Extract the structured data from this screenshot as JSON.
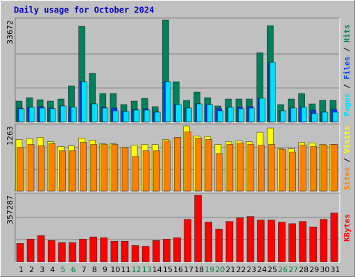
{
  "chart_data": {
    "type": "bar",
    "title": "Daily usage for October 2024",
    "categories": [
      "1",
      "2",
      "3",
      "4",
      "5",
      "6",
      "7",
      "8",
      "9",
      "10",
      "11",
      "12",
      "13",
      "14",
      "15",
      "16",
      "17",
      "18",
      "19",
      "20",
      "21",
      "22",
      "23",
      "24",
      "25",
      "26",
      "27",
      "28",
      "29",
      "30",
      "31"
    ],
    "category_colors": [
      "#000000",
      "#000000",
      "#000000",
      "#000000",
      "#008040",
      "#008040",
      "#000000",
      "#000000",
      "#000000",
      "#000000",
      "#000000",
      "#008040",
      "#008040",
      "#000000",
      "#000000",
      "#000000",
      "#000000",
      "#000000",
      "#008040",
      "#008040",
      "#000000",
      "#000000",
      "#000000",
      "#000000",
      "#000000",
      "#008040",
      "#008040",
      "#000000",
      "#000000",
      "#000000",
      "#000000"
    ],
    "legend_separator": " / ",
    "panels": [
      {
        "ylim": [
          0,
          33672
        ],
        "yticks": [
          33672
        ],
        "series": [
          {
            "name": "Hits",
            "color": "#00805c",
            "values": [
              6870,
              8015,
              7328,
              6870,
              7557,
              11908,
              31602,
              16030,
              9389,
              9389,
              5725,
              6870,
              7786,
              5038,
              33672,
              13282,
              7099,
              9847,
              8015,
              5267,
              7557,
              7557,
              7557,
              22900,
              31831,
              5725,
              7557,
              9389,
              5954,
              7099,
              7099
            ]
          },
          {
            "name": "Files",
            "color": "#0040ff",
            "values": [
              4580,
              4809,
              5038,
              4580,
              5267,
              4809,
              13282,
              5954,
              4809,
              4580,
              3435,
              4122,
              4351,
              3206,
              13282,
              5725,
              4580,
              5954,
              5725,
              4351,
              4809,
              4809,
              5038,
              7786,
              19694,
              3664,
              4580,
              4809,
              3893,
              3206,
              4122
            ]
          },
          {
            "name": "Pages",
            "color": "#00e0ff",
            "values": [
              4351,
              4809,
              4580,
              4351,
              5267,
              4809,
              13282,
              5954,
              4580,
              3664,
              3435,
              3893,
              3893,
              3206,
              13282,
              5725,
              4580,
              5954,
              5725,
              3664,
              4809,
              4351,
              4580,
              7786,
              19694,
              3664,
              4580,
              4809,
              2748,
              3206,
              3206
            ]
          }
        ]
      },
      {
        "ylim": [
          0,
          1263
        ],
        "yticks": [
          1263
        ],
        "series": [
          {
            "name": "Visits",
            "color": "#ffff00",
            "values": [
              1002,
              1016,
              1043,
              961,
              865,
              879,
              1030,
              989,
              920,
              920,
              851,
              892,
              906,
              906,
              1002,
              1016,
              1263,
              1071,
              1057,
              906,
              961,
              975,
              961,
              1140,
              1222,
              824,
              824,
              947,
              934,
              906,
              906
            ]
          },
          {
            "name": "Sites",
            "color": "#ff8000",
            "values": [
              851,
              906,
              879,
              920,
              783,
              783,
              947,
              906,
              906,
              906,
              838,
              673,
              783,
              783,
              975,
              1043,
              1153,
              1030,
              1002,
              728,
              906,
              934,
              906,
              892,
              906,
              810,
              755,
              892,
              865,
              892,
              906
            ]
          }
        ]
      },
      {
        "ylim": [
          0,
          357287
        ],
        "yticks": [
          357287
        ],
        "series": [
          {
            "name": "KBytes",
            "color": "#ff0000",
            "values": [
              98826,
              121632,
              140637,
              114030,
              102627,
              102627,
              121632,
              133035,
              129234,
              110229,
              110229,
              87423,
              83622,
              114030,
              121632,
              129234,
              228060,
              357287,
              212856,
              174846,
              216657,
              235662,
              243264,
              224259,
              224259,
              212856,
              205254,
              216657,
              186249,
              228060,
              262269
            ]
          }
        ]
      }
    ]
  }
}
